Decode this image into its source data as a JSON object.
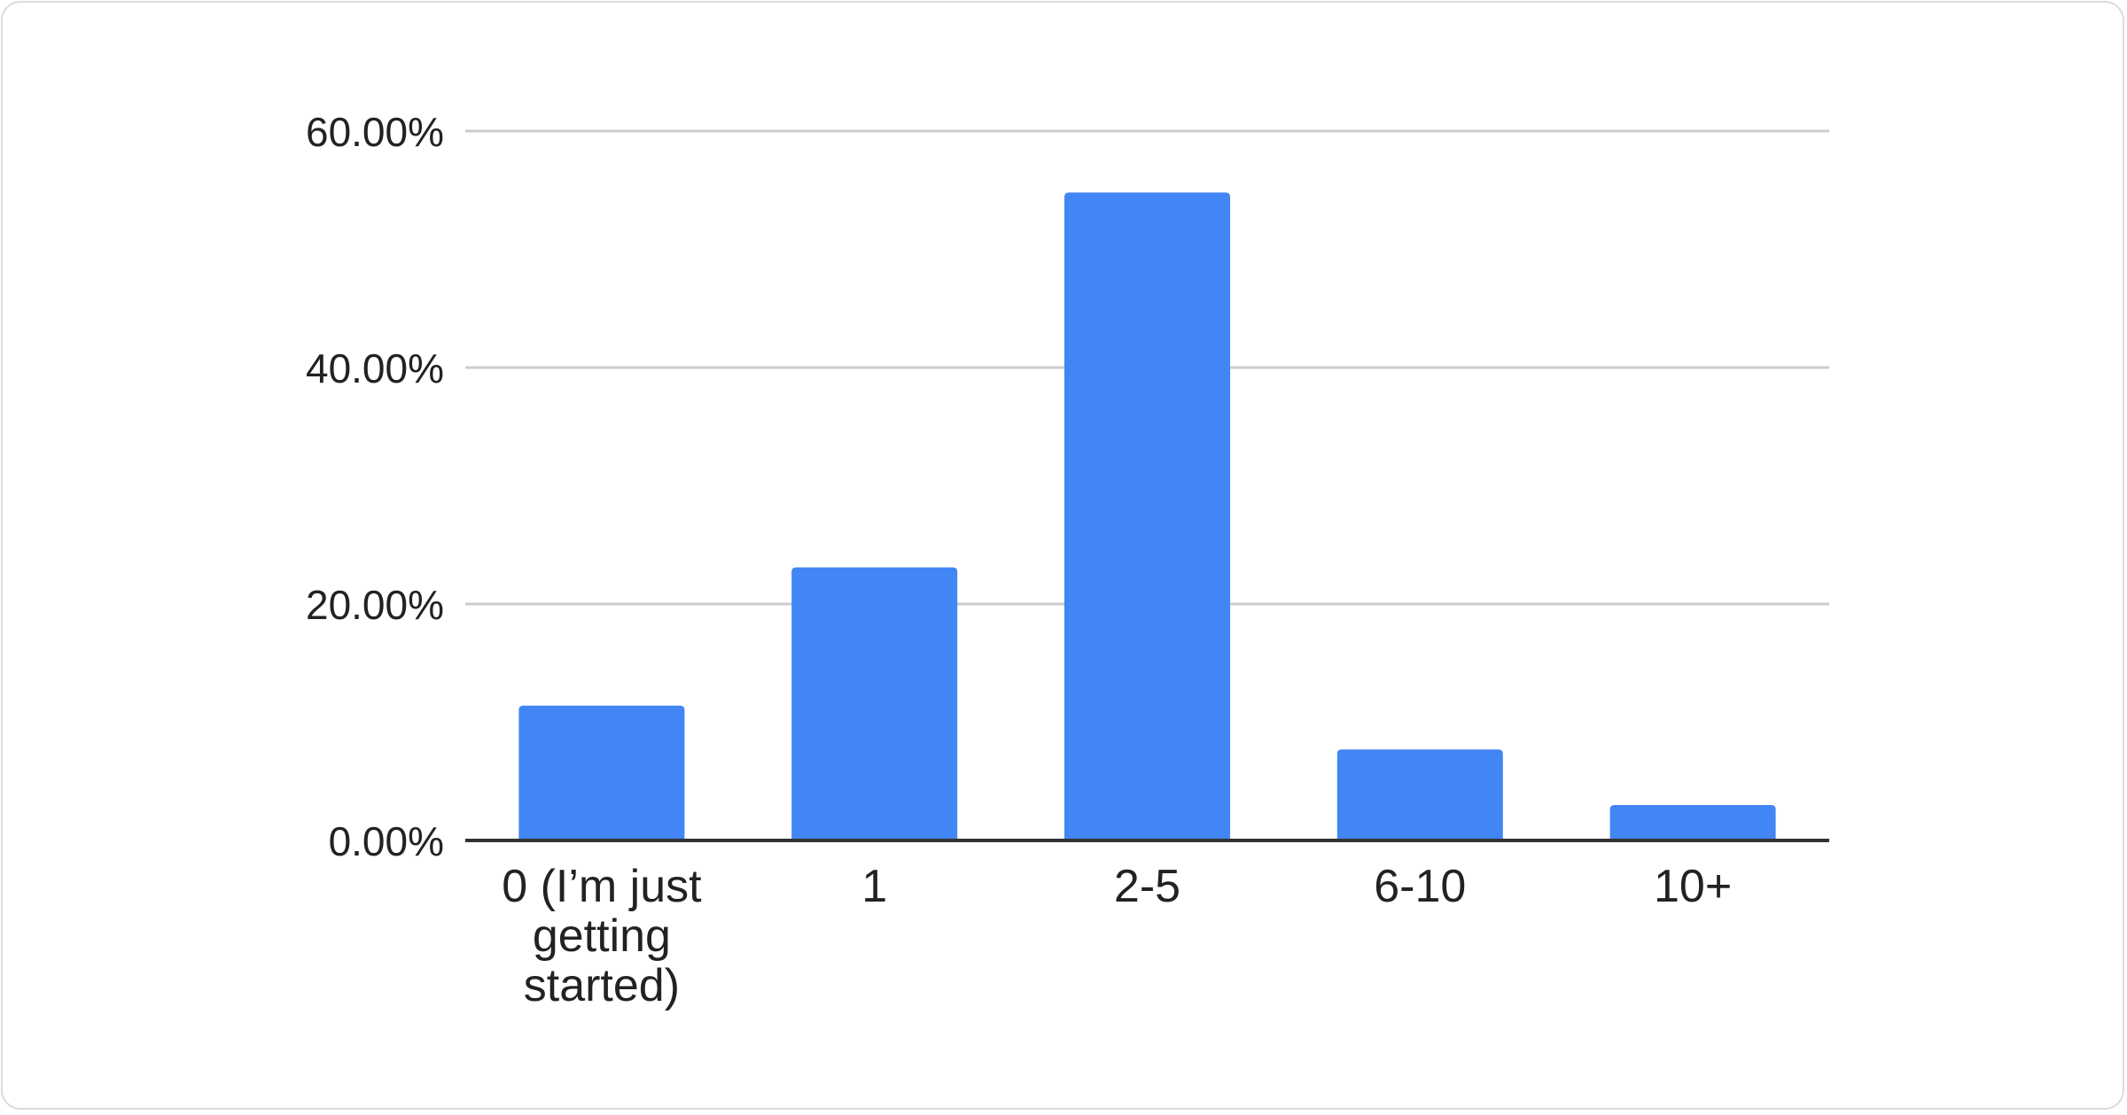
{
  "chart_data": {
    "type": "bar",
    "title": "",
    "xlabel": "",
    "ylabel": "",
    "categories": [
      "0 (I’m just getting started)",
      "1",
      "2-5",
      "6-10",
      "10+"
    ],
    "category_lines": [
      [
        "0 (I’m just",
        "getting",
        "started)"
      ],
      [
        "1"
      ],
      [
        "2-5"
      ],
      [
        "6-10"
      ],
      [
        "10+"
      ]
    ],
    "values": [
      11.4,
      23.1,
      54.8,
      7.7,
      3.0
    ],
    "ylim": [
      0,
      60
    ],
    "yticks": [
      0,
      20,
      40,
      60
    ],
    "ytick_labels": [
      "0.00%",
      "20.00%",
      "40.00%",
      "60.00%"
    ],
    "grid": true,
    "legend": "none",
    "bar_color": "#4285f4"
  }
}
